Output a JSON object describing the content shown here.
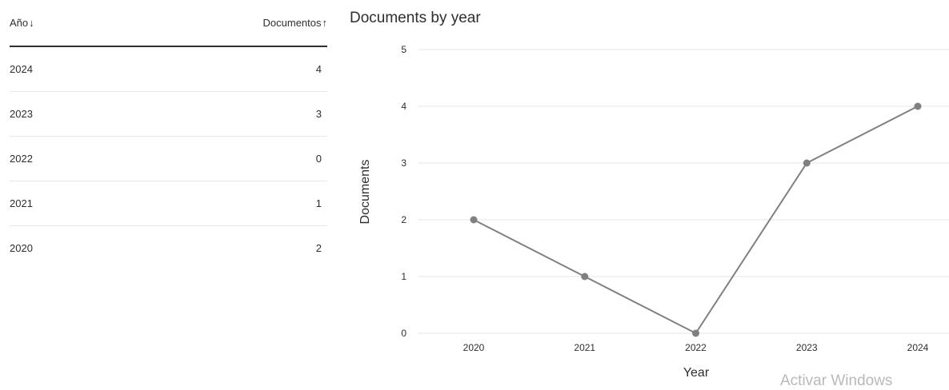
{
  "table": {
    "headers": {
      "year": "Año",
      "documents": "Documentos"
    },
    "sort_icons": {
      "year": "arrow-down-icon",
      "documents": "arrow-up-icon"
    },
    "rows": [
      {
        "year": "2024",
        "documents": "4"
      },
      {
        "year": "2023",
        "documents": "3"
      },
      {
        "year": "2022",
        "documents": "0"
      },
      {
        "year": "2021",
        "documents": "1"
      },
      {
        "year": "2020",
        "documents": "2"
      }
    ]
  },
  "chart_data": {
    "type": "line",
    "title": "Documents by year",
    "xlabel": "Year",
    "ylabel": "Documents",
    "x": [
      "2020",
      "2021",
      "2022",
      "2023",
      "2024"
    ],
    "values": [
      2,
      1,
      0,
      3,
      4
    ],
    "ylim": [
      0,
      5
    ],
    "yticks": [
      0,
      1,
      2,
      3,
      4,
      5
    ],
    "grid": true,
    "line_color": "#808080",
    "grid_color": "#e6e6e6"
  },
  "watermark": "Activar Windows"
}
